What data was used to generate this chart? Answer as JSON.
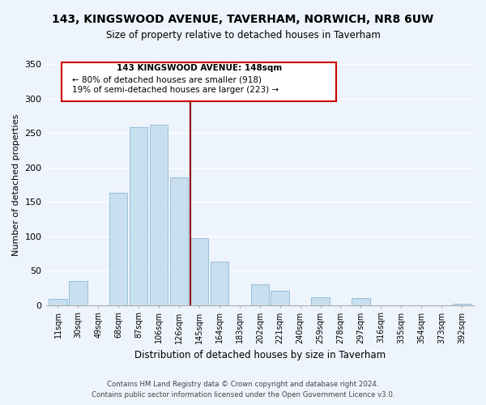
{
  "title": "143, KINGSWOOD AVENUE, TAVERHAM, NORWICH, NR8 6UW",
  "subtitle": "Size of property relative to detached houses in Taverham",
  "xlabel": "Distribution of detached houses by size in Taverham",
  "ylabel": "Number of detached properties",
  "bar_labels": [
    "11sqm",
    "30sqm",
    "49sqm",
    "68sqm",
    "87sqm",
    "106sqm",
    "126sqm",
    "145sqm",
    "164sqm",
    "183sqm",
    "202sqm",
    "221sqm",
    "240sqm",
    "259sqm",
    "278sqm",
    "297sqm",
    "316sqm",
    "335sqm",
    "354sqm",
    "373sqm",
    "392sqm"
  ],
  "bar_values": [
    9,
    35,
    0,
    163,
    258,
    262,
    185,
    97,
    63,
    0,
    30,
    21,
    0,
    11,
    0,
    10,
    0,
    0,
    0,
    0,
    2
  ],
  "bar_color": "#c8dff0",
  "bar_edge_color": "#8ab8d8",
  "vline_color": "#8B0000",
  "annotation_line1": "143 KINGSWOOD AVENUE: 148sqm",
  "annotation_line2": "← 80% of detached houses are smaller (918)",
  "annotation_line3": "19% of semi-detached houses are larger (223) →",
  "footer_line1": "Contains HM Land Registry data © Crown copyright and database right 2024.",
  "footer_line2": "Contains public sector information licensed under the Open Government Licence v3.0.",
  "ylim": [
    0,
    350
  ],
  "background_color": "#eef4fb",
  "grid_color": "#ffffff"
}
